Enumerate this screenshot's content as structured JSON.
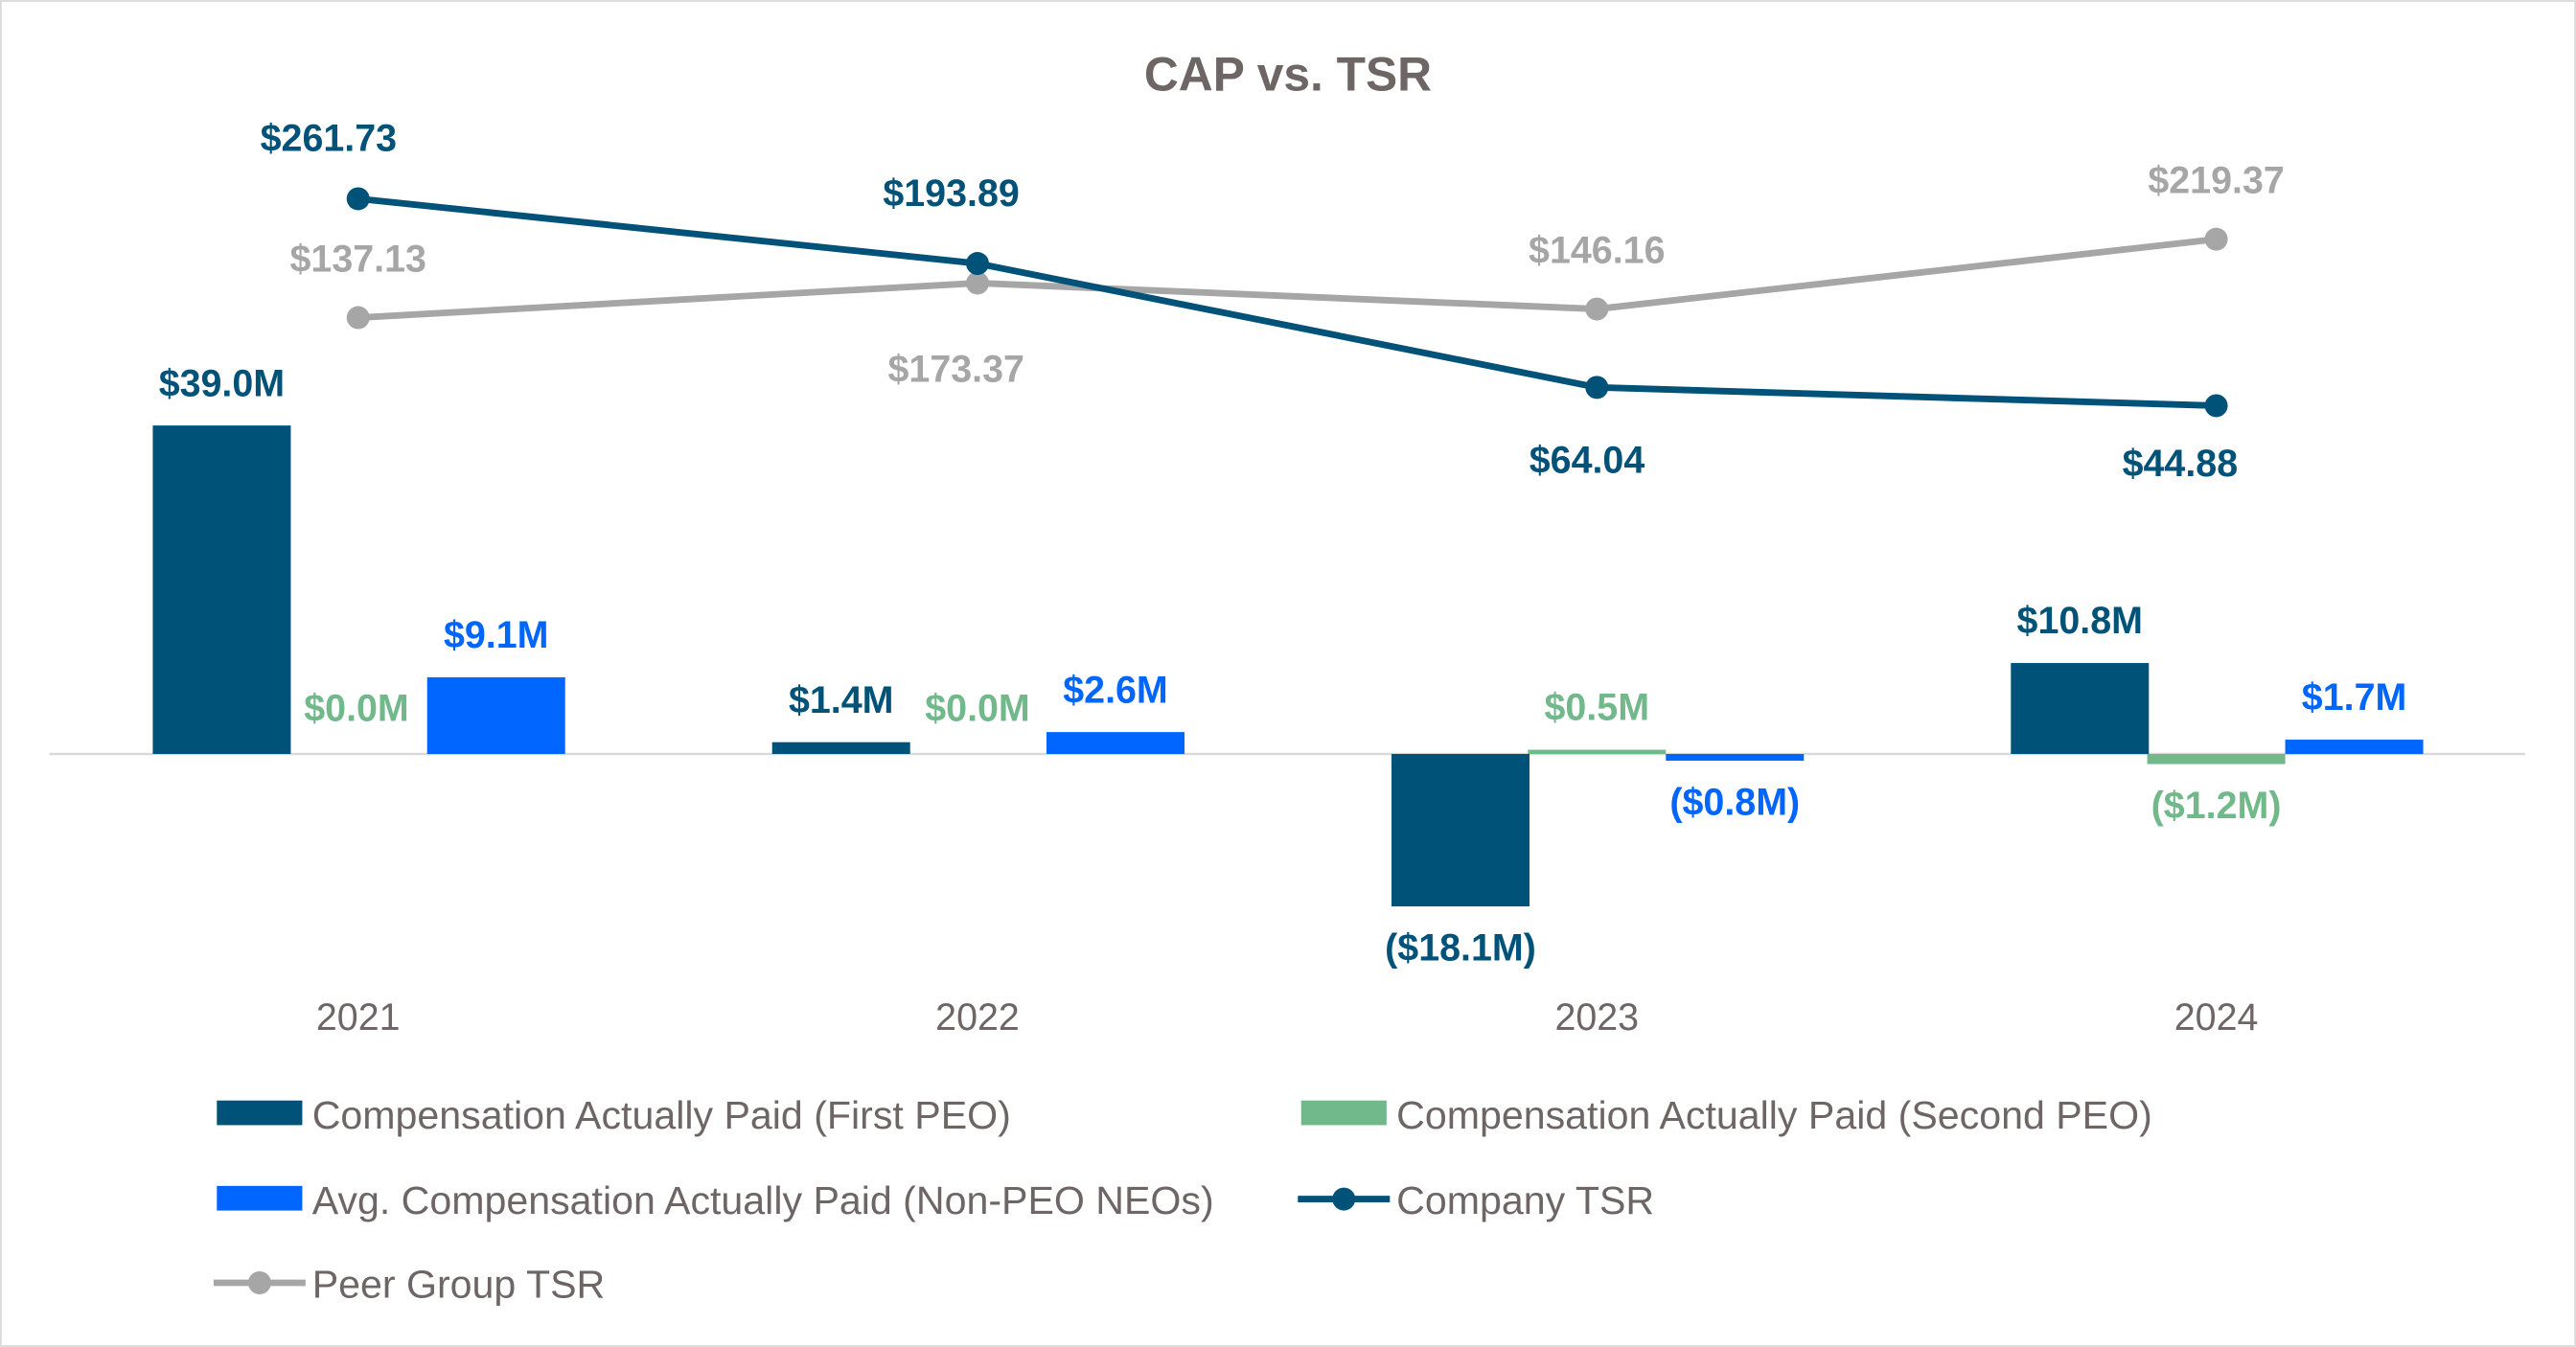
{
  "chart_data": {
    "type": "bar+line",
    "title": "CAP vs. TSR",
    "categories": [
      "2021",
      "2022",
      "2023",
      "2024"
    ],
    "bar_series": [
      {
        "name": "Compensation Actually Paid (First PEO)",
        "color": "#005279",
        "values": [
          39.0,
          1.4,
          -18.1,
          10.8
        ],
        "labels": [
          "$39.0M",
          "$1.4M",
          "($18.1M)",
          "$10.8M"
        ]
      },
      {
        "name": "Compensation Actually Paid (Second PEO)",
        "color": "#71b88b",
        "values": [
          0.0,
          0.0,
          0.5,
          -1.2
        ],
        "labels": [
          "$0.0M",
          "$0.0M",
          "$0.5M",
          "($1.2M)"
        ]
      },
      {
        "name": "Avg. Compensation Actually Paid (Non-PEO NEOs)",
        "color": "#0066ff",
        "values": [
          9.1,
          2.6,
          -0.8,
          1.7
        ],
        "labels": [
          "$9.1M",
          "$2.6M",
          "($0.8M)",
          "$1.7M"
        ]
      }
    ],
    "line_series": [
      {
        "name": "Company TSR",
        "color": "#005279",
        "values": [
          261.73,
          193.89,
          64.04,
          44.88
        ],
        "labels": [
          "$261.73",
          "$193.89",
          "$64.04",
          "$44.88"
        ]
      },
      {
        "name": "Peer Group TSR",
        "color": "#a6a6a6",
        "values": [
          137.13,
          173.37,
          146.16,
          219.37
        ],
        "labels": [
          "$137.13",
          "$173.37",
          "$146.16",
          "$219.37"
        ]
      }
    ],
    "bar_unit": "$M",
    "grid": false,
    "legend_placement": "bottom"
  }
}
